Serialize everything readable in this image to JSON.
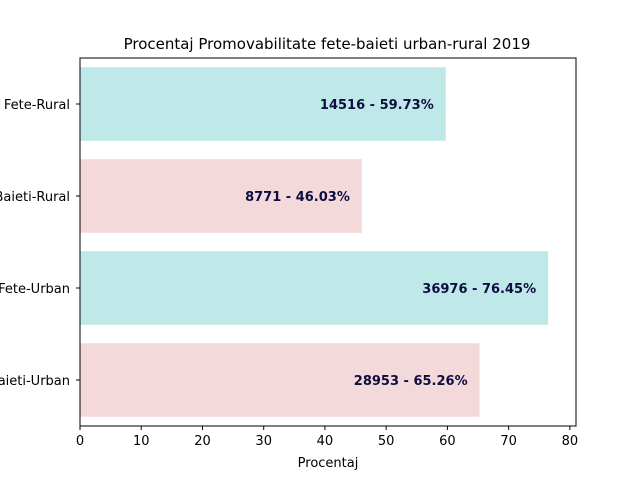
{
  "chart_data": {
    "type": "bar",
    "orientation": "horizontal",
    "title": "Procentaj Promovabilitate fete-baieti urban-rural 2019",
    "xlabel": "Procentaj",
    "ylabel": "",
    "xlim": [
      0,
      81
    ],
    "x_ticks": [
      0,
      10,
      20,
      30,
      40,
      50,
      60,
      70,
      80
    ],
    "grid": false,
    "categories": [
      "Fete-Rural",
      "Baieti-Rural",
      "Fete-Urban",
      "Baieti-Urban"
    ],
    "values": [
      59.73,
      46.03,
      76.45,
      65.26
    ],
    "data_labels": [
      "14516 - 59.73%",
      "8771 - 46.03%",
      "36976 - 76.45%",
      "28953 - 65.26%"
    ],
    "bar_colors": [
      "#bfe9e8",
      "#f4d9da",
      "#bfe9e8",
      "#f4d9da"
    ],
    "label_color": "#0d0d40"
  }
}
